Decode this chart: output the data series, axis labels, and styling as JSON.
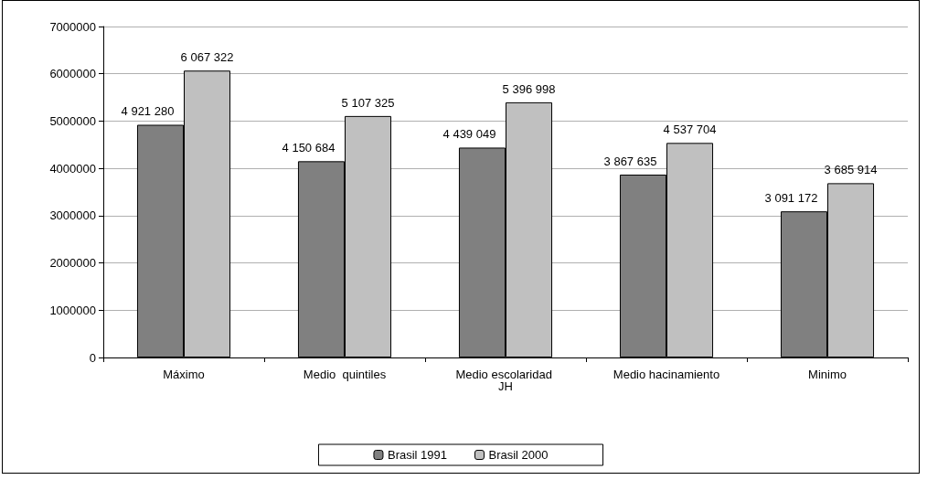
{
  "chart_data": {
    "type": "bar",
    "categories": [
      "Máximo",
      "Medio  quintiles",
      "Medio escolaridad JH",
      "Medio hacinamiento",
      "Minimo"
    ],
    "series": [
      {
        "name": "Brasil 1991",
        "color": "#808080",
        "values": [
          4921280,
          4150684,
          4439049,
          3867635,
          3091172
        ],
        "value_labels": [
          "4 921 280",
          "4 150 684",
          "4 439 049",
          "3 867 635",
          "3 091 172"
        ]
      },
      {
        "name": "Brasil 2000",
        "color": "#c0c0c0",
        "values": [
          6067322,
          5107325,
          5396998,
          4537704,
          3685914
        ],
        "value_labels": [
          "6 067 322",
          "5 107 325",
          "5 396 998",
          "4 537 704",
          "3 685 914"
        ]
      }
    ],
    "ylim": [
      0,
      7000000
    ],
    "yticks": [
      0,
      1000000,
      2000000,
      3000000,
      4000000,
      5000000,
      6000000,
      7000000
    ],
    "grid": "y",
    "legend": "bottom"
  }
}
